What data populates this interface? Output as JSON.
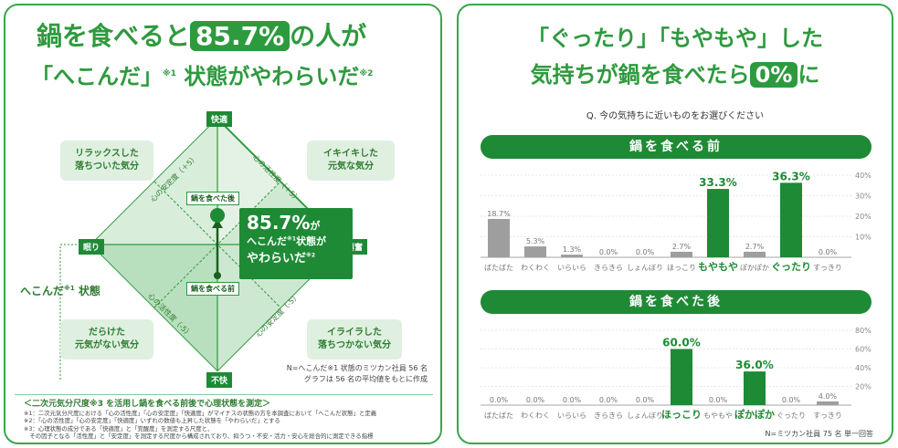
{
  "left": {
    "headline": {
      "line1_pre": "鍋を食べると",
      "percent": "85.7%",
      "line1_post": "の人が",
      "line2_main": "「へこんだ」",
      "line2_note": "※1",
      "line2_rest": "状態がやわらいだ",
      "line2_note2": "※2"
    },
    "axes": {
      "top": "快適",
      "bottom": "不快",
      "left": "眠り",
      "right": "興奮"
    },
    "diagonals": {
      "tl": "心の安定度（＋5）",
      "tr": "心の活性度（＋5）",
      "bl": "心の活性度（-5）",
      "br": "心の安定度（-5）"
    },
    "quadrants": {
      "tl": "リラックスした\n落ちついた気分",
      "tr": "イキイキした\n元気な気分",
      "bl": "だらけた\n元気がない気分",
      "br": "イライラした\n落ちつかない気分"
    },
    "points": {
      "after": "鍋を食べた後",
      "before": "鍋を食べる前"
    },
    "callout": {
      "percent": "85.7%",
      "suffix": "が",
      "line2": "へこんだ",
      "line2_note": "※1",
      "line2_rest": "状態が",
      "line3": "やわらいだ",
      "line3_note": "※2"
    },
    "side_label": "へこんだ",
    "side_label_note": "※1",
    "side_label_rest": "状態",
    "sample_note1": "N=へこんだ※1 状態のミツカン社員 56 名",
    "sample_note2": "グラフは 56 名の平均値をもとに作成",
    "footer_title": "＜二次元気分尺度※3 を活用し鍋を食べる前後で心理状態を測定＞",
    "footer_lines": [
      "※1：二次元気分尺度における「心の活性度」「心の安定度」「快適度」がマイナスの状態の方を本調査において「へこんだ状態」と定義",
      "※2：「心の活性度」「心の安定度」「快適度」いずれの数値も上昇した状態を「やわらいだ」とする",
      "※3：心理状態の成分である「快適度」と「覚醒度」を測定する尺度と、",
      "　その因子となる「活性度」と「安定度」を測定する尺度から構成されており、抑うつ・不安・活力・安心を総合的に測定できる指標"
    ]
  },
  "right": {
    "headline": {
      "line1": "「ぐったり」「もやもや」した",
      "line2_pre": "気持ちが鍋を食べたら",
      "percent": "0%",
      "line2_post": "に"
    },
    "question": "Q. 今の気持ちに近いものをお選びください",
    "before_header": "鍋を食べる前",
    "after_header": "鍋を食べた後",
    "sample_note": "N=ミツカン社員 75 名 単一回答"
  },
  "colors": {
    "green": "#2e9a3e",
    "dark_green": "#1e8a35",
    "gray_bar": "#9e9e9e",
    "light_green": "#dff0e0"
  },
  "chart_data": [
    {
      "type": "bar",
      "title": "鍋を食べる前",
      "categories": [
        "ばたばた",
        "わくわく",
        "いらいら",
        "きらきら",
        "しょんぼり",
        "ほっこり",
        "もやもや",
        "ぽかぽか",
        "ぐったり",
        "すっきり"
      ],
      "values": [
        18.7,
        5.3,
        1.3,
        0.0,
        0.0,
        2.7,
        33.3,
        2.7,
        36.3,
        0.0
      ],
      "labels": [
        "18.7%",
        "5.3%",
        "1.3%",
        "0.0%",
        "0.0%",
        "2.7%",
        "33.3%",
        "2.7%",
        "36.3%",
        "0.0%"
      ],
      "highlight": [
        "もやもや",
        "ぐったり"
      ],
      "ylim": [
        0,
        40
      ],
      "yticks": [
        "40%",
        "30%",
        "20%",
        "10%"
      ],
      "grid": true
    },
    {
      "type": "bar",
      "title": "鍋を食べた後",
      "categories": [
        "ばたばた",
        "わくわく",
        "いらいら",
        "きらきら",
        "しょんぼり",
        "ほっこり",
        "もやもや",
        "ぽかぽか",
        "ぐったり",
        "すっきり"
      ],
      "values": [
        0.0,
        0.0,
        0.0,
        0.0,
        0.0,
        60.0,
        0.0,
        36.0,
        0.0,
        4.0
      ],
      "labels": [
        "0.0%",
        "0.0%",
        "0.0%",
        "0.0%",
        "0.0%",
        "60.0%",
        "0.0%",
        "36.0%",
        "0.0%",
        "4.0%"
      ],
      "highlight": [
        "ほっこり",
        "ぽかぽか"
      ],
      "ylim": [
        0,
        80
      ],
      "yticks": [
        "80%",
        "60%",
        "40%",
        "20%"
      ],
      "grid": true
    }
  ]
}
